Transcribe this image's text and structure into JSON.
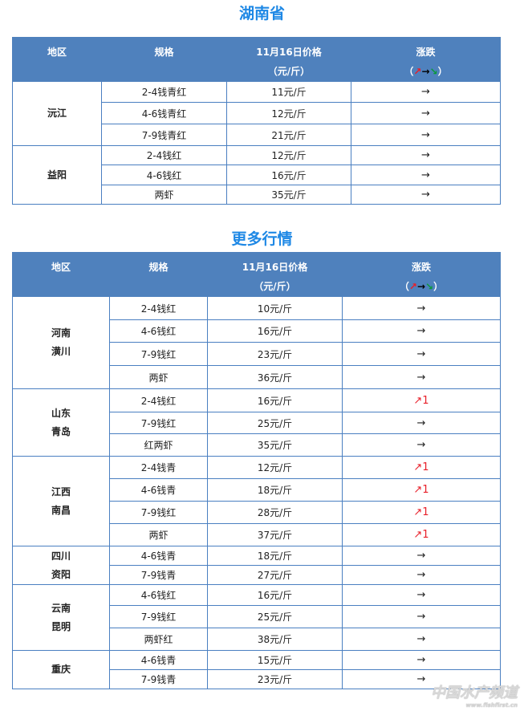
{
  "colors": {
    "header_bg": "#4f81bd",
    "title": "#1e88e5",
    "border": "#4a7fc1",
    "up": "#e8202a",
    "down": "#0a9a3a"
  },
  "headers": {
    "region": "地区",
    "spec": "规格",
    "price_line1": "11月16日价格",
    "price_line2": "（元/斤）",
    "trend_line1": "涨跌",
    "legend_open": "（",
    "legend_up": "↗",
    "legend_flat": "→",
    "legend_down": "↘",
    "legend_close": "）"
  },
  "tables": [
    {
      "title": "湖南省",
      "groups": [
        {
          "region": [
            "沅江"
          ],
          "rows": [
            [
              "2-4钱青红",
              "11元/斤",
              "→"
            ],
            [
              "4-6钱青红",
              "12元/斤",
              "→"
            ],
            [
              "7-9钱青红",
              "21元/斤",
              "→"
            ]
          ]
        },
        {
          "region": [
            "益阳"
          ],
          "rows": [
            [
              "2-4钱红",
              "12元/斤",
              "→"
            ],
            [
              "4-6钱红",
              "16元/斤",
              "→"
            ],
            [
              "两虾",
              "35元/斤",
              "→"
            ]
          ]
        }
      ]
    },
    {
      "title": "更多行情",
      "groups": [
        {
          "region": [
            "河南",
            "潢川"
          ],
          "rows": [
            [
              "2-4钱红",
              "10元/斤",
              "→"
            ],
            [
              "4-6钱红",
              "16元/斤",
              "→"
            ],
            [
              "7-9钱红",
              "23元/斤",
              "→"
            ],
            [
              "两虾",
              "36元/斤",
              "→"
            ]
          ]
        },
        {
          "region": [
            "山东",
            "青岛"
          ],
          "rows": [
            [
              "2-4钱红",
              "16元/斤",
              "↗1"
            ],
            [
              "7-9钱红",
              "25元/斤",
              "→"
            ],
            [
              "红两虾",
              "35元/斤",
              "→"
            ]
          ]
        },
        {
          "region": [
            "江西",
            "南昌"
          ],
          "rows": [
            [
              "2-4钱青",
              "12元/斤",
              "↗1"
            ],
            [
              "4-6钱青",
              "18元/斤",
              "↗1"
            ],
            [
              "7-9钱红",
              "28元/斤",
              "↗1"
            ],
            [
              "两虾",
              "37元/斤",
              "↗1"
            ]
          ]
        },
        {
          "region": [
            "四川",
            "资阳"
          ],
          "rows": [
            [
              "4-6钱青",
              "18元/斤",
              "→"
            ],
            [
              "7-9钱青",
              "27元/斤",
              "→"
            ]
          ]
        },
        {
          "region": [
            "云南",
            "昆明"
          ],
          "rows": [
            [
              "4-6钱红",
              "16元/斤",
              "→"
            ],
            [
              "7-9钱红",
              "25元/斤",
              "→"
            ],
            [
              "两虾红",
              "38元/斤",
              "→"
            ]
          ]
        },
        {
          "region": [
            "重庆"
          ],
          "rows": [
            [
              "4-6钱青",
              "15元/斤",
              "→"
            ],
            [
              "7-9钱青",
              "23元/斤",
              "→"
            ]
          ]
        }
      ]
    }
  ],
  "watermark": {
    "text": "中国水产频道",
    "url": "www.fishfirst.cn"
  }
}
